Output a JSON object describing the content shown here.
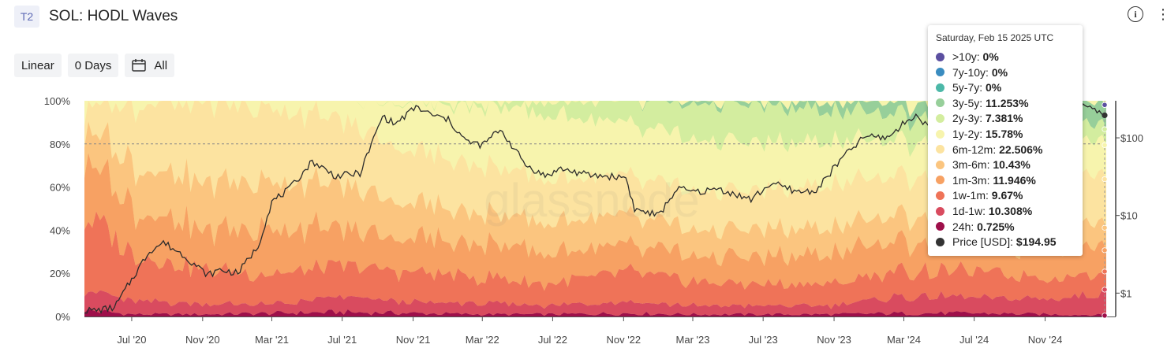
{
  "header": {
    "badge": "T2",
    "title": "SOL: HODL Waves"
  },
  "controls": {
    "scale": "Linear",
    "window": "0 Days",
    "range": "All"
  },
  "watermark": "glassnode",
  "icons": {
    "info": "info-icon",
    "menu": "more-vertical-icon",
    "calendar": "calendar-icon"
  },
  "tooltip": {
    "date": "Saturday, Feb 15 2025 UTC",
    "rows": [
      {
        "label": ">10y",
        "value": "0%",
        "color": "#5b4fa0"
      },
      {
        "label": "7y-10y",
        "value": "0%",
        "color": "#3a8cc0"
      },
      {
        "label": "5y-7y",
        "value": "0%",
        "color": "#4cb8a8"
      },
      {
        "label": "3y-5y",
        "value": "11.253%",
        "color": "#97cf9a"
      },
      {
        "label": "2y-3y",
        "value": "7.381%",
        "color": "#d3ed9f"
      },
      {
        "label": "1y-2y",
        "value": "15.78%",
        "color": "#f7f4ad"
      },
      {
        "label": "6m-12m",
        "value": "22.506%",
        "color": "#fce3a0"
      },
      {
        "label": "3m-6m",
        "value": "10.43%",
        "color": "#fbc57f"
      },
      {
        "label": "1m-3m",
        "value": "11.946%",
        "color": "#f7a163"
      },
      {
        "label": "1w-1m",
        "value": "9.67%",
        "color": "#ef7358"
      },
      {
        "label": "1d-1w",
        "value": "10.308%",
        "color": "#d94b5f"
      },
      {
        "label": "24h",
        "value": "0.725%",
        "color": "#9e0f4a"
      },
      {
        "label": "Price [USD]",
        "value": "$194.95",
        "color": "#333333"
      }
    ]
  },
  "chart_data": {
    "type": "area",
    "stacked": true,
    "y_left": {
      "ticks": [
        "0%",
        "20%",
        "40%",
        "60%",
        "80%",
        "100%"
      ],
      "range": [
        0,
        100
      ]
    },
    "y_right": {
      "scale": "log",
      "ticks": [
        "$1",
        "$10",
        "$100"
      ],
      "range": [
        0.5,
        300
      ]
    },
    "x_ticks": [
      "Jul '20",
      "Nov '20",
      "Mar '21",
      "Jul '21",
      "Nov '21",
      "Mar '22",
      "Jul '22",
      "Nov '22",
      "Mar '23",
      "Jul '23",
      "Nov '23",
      "Mar '24",
      "Jul '24",
      "Nov '24"
    ],
    "x_dates": [
      "2020-04-10",
      "2020-07-01",
      "2020-11-01",
      "2021-03-01",
      "2021-07-01",
      "2021-11-01",
      "2022-03-01",
      "2022-07-01",
      "2022-11-01",
      "2023-03-01",
      "2023-07-01",
      "2023-11-01",
      "2024-03-01",
      "2024-07-01",
      "2024-11-01",
      "2025-02-15"
    ],
    "series": [
      {
        "name": "24h",
        "color": "#9e0f4a",
        "values": [
          3,
          1,
          1,
          1.5,
          2,
          1.5,
          1,
          1,
          1.5,
          1,
          1,
          1,
          1.5,
          1.5,
          1,
          0.725
        ]
      },
      {
        "name": "1d-1w",
        "color": "#d94b5f",
        "values": [
          10,
          6,
          5,
          4,
          7,
          5,
          5,
          4,
          6,
          4,
          4,
          4,
          8,
          7,
          7,
          10.308
        ]
      },
      {
        "name": "1w-1m",
        "color": "#ef7358",
        "values": [
          35,
          22,
          16,
          14,
          14,
          14,
          12,
          10,
          14,
          11,
          10,
          10,
          12,
          12,
          10,
          9.67
        ]
      },
      {
        "name": "1m-3m",
        "color": "#f7a163",
        "values": [
          28,
          22,
          18,
          22,
          16,
          16,
          16,
          14,
          12,
          12,
          12,
          14,
          14,
          12,
          14,
          11.946
        ]
      },
      {
        "name": "3m-6m",
        "color": "#fbc57f",
        "values": [
          14,
          20,
          22,
          22,
          20,
          16,
          14,
          14,
          14,
          12,
          13,
          12,
          12,
          12,
          12,
          10.43
        ]
      },
      {
        "name": "6m-12m",
        "color": "#fce3a0",
        "values": [
          10,
          29,
          38,
          34,
          30,
          24,
          22,
          20,
          18,
          18,
          18,
          20,
          18,
          22,
          23,
          22.506
        ]
      },
      {
        "name": "1y-2y",
        "color": "#f7f4ad",
        "values": [
          0,
          0,
          0,
          2.5,
          11,
          23,
          28,
          30,
          24,
          24,
          22,
          20,
          16,
          16,
          15,
          15.78
        ]
      },
      {
        "name": "2y-3y",
        "color": "#d3ed9f",
        "values": [
          0,
          0,
          0,
          0,
          0,
          0.5,
          2,
          7,
          10.5,
          17,
          18,
          14,
          12,
          10,
          9,
          7.381
        ]
      },
      {
        "name": "3y-5y",
        "color": "#97cf9a",
        "values": [
          0,
          0,
          0,
          0,
          0,
          0,
          0,
          0,
          0,
          2,
          2,
          5,
          6.5,
          7.5,
          9,
          11.253
        ]
      },
      {
        "name": "5y-7y",
        "color": "#4cb8a8",
        "values": [
          0,
          0,
          0,
          0,
          0,
          0,
          0,
          0,
          0,
          0,
          0,
          0,
          0,
          0,
          0,
          0
        ]
      },
      {
        "name": "7y-10y",
        "color": "#3a8cc0",
        "values": [
          0,
          0,
          0,
          0,
          0,
          0,
          0,
          0,
          0,
          0,
          0,
          0,
          0,
          0,
          0,
          0
        ]
      },
      {
        "name": ">10y",
        "color": "#5b4fa0",
        "values": [
          0,
          0,
          0,
          0,
          0,
          0,
          0,
          0,
          0,
          0,
          0,
          0,
          0,
          0,
          0,
          0
        ]
      }
    ],
    "price": {
      "name": "Price [USD]",
      "color": "#333333",
      "dates": [
        "2020-04-10",
        "2020-05-01",
        "2020-06-01",
        "2020-07-01",
        "2020-08-01",
        "2020-08-25",
        "2020-10-01",
        "2020-11-10",
        "2020-12-01",
        "2021-01-01",
        "2021-02-05",
        "2021-03-01",
        "2021-04-01",
        "2021-05-10",
        "2021-06-20",
        "2021-08-01",
        "2021-09-09",
        "2021-10-01",
        "2021-11-06",
        "2021-12-01",
        "2022-01-01",
        "2022-02-01",
        "2022-03-01",
        "2022-04-01",
        "2022-05-15",
        "2022-06-18",
        "2022-07-15",
        "2022-09-01",
        "2022-11-05",
        "2022-11-20",
        "2023-01-01",
        "2023-02-01",
        "2023-03-10",
        "2023-04-15",
        "2023-06-10",
        "2023-07-15",
        "2023-09-01",
        "2023-10-01",
        "2023-11-15",
        "2023-12-25",
        "2024-02-01",
        "2024-03-18",
        "2024-04-15",
        "2024-06-01",
        "2024-08-05",
        "2024-10-01",
        "2024-11-22",
        "2025-01-18",
        "2025-02-15"
      ],
      "values": [
        0.6,
        0.6,
        0.65,
        1.5,
        3.5,
        4.5,
        3,
        1.7,
        2,
        1.8,
        4,
        15,
        22,
        50,
        32,
        35,
        190,
        150,
        250,
        200,
        170,
        90,
        80,
        130,
        45,
        32,
        40,
        33,
        31,
        12,
        10,
        22,
        20,
        22,
        16,
        26,
        20,
        21,
        55,
        105,
        100,
        195,
        140,
        160,
        130,
        155,
        245,
        260,
        194.95
      ]
    }
  }
}
